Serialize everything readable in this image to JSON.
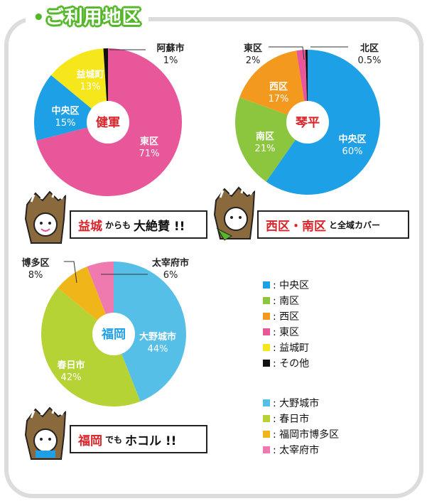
{
  "title": "ご利用地区",
  "chart_data": [
    {
      "type": "pie",
      "center_label": "健軍",
      "slices": [
        {
          "label": "東区",
          "value": 71,
          "display": "71%",
          "color": "#e8579a"
        },
        {
          "label": "中央区",
          "value": 15,
          "display": "15%",
          "color": "#1ea0e6"
        },
        {
          "label": "益城町",
          "value": 13,
          "display": "13%",
          "color": "#f6e61c"
        },
        {
          "label": "阿蘇市",
          "value": 1,
          "display": "1%",
          "color": "#111111"
        }
      ]
    },
    {
      "type": "pie",
      "center_label": "琴平",
      "slices": [
        {
          "label": "中央区",
          "value": 60,
          "display": "60%",
          "color": "#1ea0e6"
        },
        {
          "label": "南区",
          "value": 21,
          "display": "21%",
          "color": "#8cc63e"
        },
        {
          "label": "西区",
          "value": 17,
          "display": "17%",
          "color": "#f39a1e"
        },
        {
          "label": "東区",
          "value": 2,
          "display": "2%",
          "color": "#e8579a"
        },
        {
          "label": "北区",
          "value": 0.5,
          "display": "0.5%",
          "color": "#111111"
        }
      ]
    },
    {
      "type": "pie",
      "center_label": "福岡",
      "slices": [
        {
          "label": "大野城市",
          "value": 44,
          "display": "44%",
          "color": "#56bfe8"
        },
        {
          "label": "春日市",
          "value": 42,
          "display": "42%",
          "color": "#b5d334"
        },
        {
          "label": "博多区",
          "value": 8,
          "display": "8%",
          "color": "#f0b619"
        },
        {
          "label": "太宰府市",
          "value": 6,
          "display": "6%",
          "color": "#ef7ab0"
        }
      ]
    }
  ],
  "banners": {
    "b1": {
      "red": "益城",
      "small": "からも",
      "big": "大絶賛 !!"
    },
    "b2": {
      "red": "西区・南区",
      "small": "と全域カバー"
    },
    "b3": {
      "red": "福岡",
      "small": "でも",
      "big": "ホコル !!"
    }
  },
  "legend_kumamoto": [
    {
      "label": ": 中央区",
      "color": "#1ea0e6"
    },
    {
      "label": ": 南区",
      "color": "#8cc63e"
    },
    {
      "label": ": 西区",
      "color": "#f39a1e"
    },
    {
      "label": ": 東区",
      "color": "#e8579a"
    },
    {
      "label": ": 益城町",
      "color": "#f6e61c"
    },
    {
      "label": ": その他",
      "color": "#111111"
    }
  ],
  "legend_fukuoka": [
    {
      "label": ": 大野城市",
      "color": "#56bfe8"
    },
    {
      "label": ": 春日市",
      "color": "#b5d334"
    },
    {
      "label": ": 福岡市博多区",
      "color": "#f0b619"
    },
    {
      "label": ": 太宰府市",
      "color": "#ef7ab0"
    }
  ]
}
